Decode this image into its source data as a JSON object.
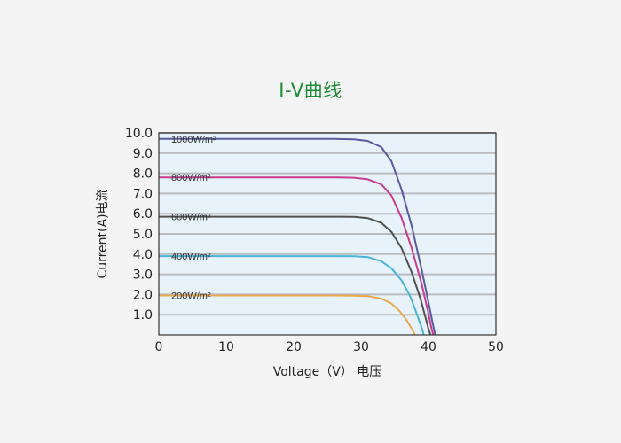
{
  "chart_data": {
    "type": "line",
    "title": "I-V曲线",
    "xlabel": "Voltage（V） 电压",
    "ylabel": "Current(A)电流",
    "xlim": [
      0,
      50
    ],
    "ylim": [
      0,
      10
    ],
    "x_ticks": [
      "0",
      "10",
      "20",
      "30",
      "40",
      "50"
    ],
    "y_ticks": [
      "1.0",
      "2.0",
      "3.0",
      "4.0",
      "5.0",
      "6.0",
      "7.0",
      "8.0",
      "9.0",
      "10.0"
    ],
    "grid": true,
    "plot_background": "#e8f2fa",
    "grid_color": "#b8bcc0",
    "series": [
      {
        "name": "1000W/m²",
        "color": "#5a5aa0",
        "x": [
          0,
          10,
          20,
          26,
          29,
          31,
          33,
          34.5,
          36,
          37.5,
          39,
          40,
          40.6,
          41
        ],
        "y": [
          9.7,
          9.7,
          9.7,
          9.7,
          9.68,
          9.6,
          9.3,
          8.6,
          7.2,
          5.4,
          3.2,
          1.6,
          0.6,
          0
        ]
      },
      {
        "name": "800W/m²",
        "color": "#c83c8c",
        "x": [
          0,
          10,
          20,
          26,
          29,
          31,
          33,
          34.5,
          36,
          37.5,
          39,
          39.9,
          40.4,
          40.7
        ],
        "y": [
          7.8,
          7.8,
          7.8,
          7.8,
          7.78,
          7.7,
          7.45,
          6.9,
          5.8,
          4.3,
          2.5,
          1.2,
          0.4,
          0
        ]
      },
      {
        "name": "600W/m²",
        "color": "#505050",
        "x": [
          0,
          10,
          20,
          26,
          29,
          31,
          33,
          34.5,
          36,
          37.5,
          38.8,
          39.6,
          40.0,
          40.3
        ],
        "y": [
          5.85,
          5.85,
          5.85,
          5.85,
          5.84,
          5.78,
          5.55,
          5.1,
          4.3,
          3.1,
          1.8,
          0.8,
          0.3,
          0
        ]
      },
      {
        "name": "400W/m²",
        "color": "#48b4d8",
        "x": [
          0,
          10,
          20,
          26,
          29,
          31,
          33,
          34.5,
          36,
          37.3,
          38.3,
          39.0,
          39.3
        ],
        "y": [
          3.9,
          3.9,
          3.9,
          3.9,
          3.89,
          3.85,
          3.65,
          3.3,
          2.7,
          1.9,
          1.0,
          0.35,
          0
        ]
      },
      {
        "name": "200W/m²",
        "color": "#eca850",
        "x": [
          0,
          10,
          20,
          26,
          29,
          31,
          33,
          34.5,
          35.8,
          36.8,
          37.6,
          38.0
        ],
        "y": [
          1.95,
          1.95,
          1.95,
          1.95,
          1.94,
          1.92,
          1.8,
          1.55,
          1.15,
          0.7,
          0.25,
          0
        ]
      }
    ]
  }
}
